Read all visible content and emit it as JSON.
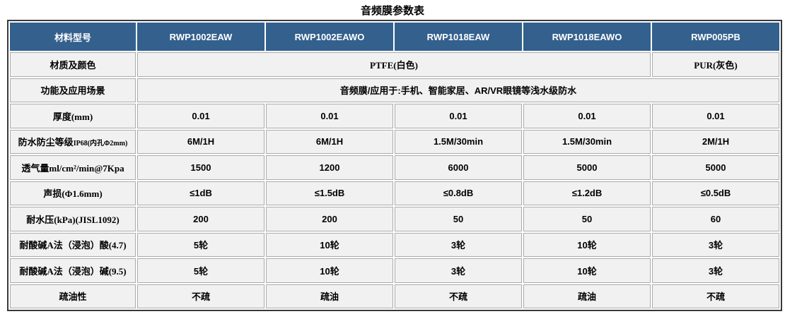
{
  "title": "音频膜参数表",
  "colors": {
    "header_bg": "#33608d",
    "header_text": "#ffffff",
    "cell_bg": "#f1f1f1",
    "cell_border": "#ababab",
    "outer_border": "#3a3a3a",
    "text": "#000000"
  },
  "table": {
    "header": {
      "label": "材料型号",
      "models": [
        "RWP1002EAW",
        "RWP1002EAWO",
        "RWP1018EAW",
        "RWP1018EAWO",
        "RWP005PB"
      ]
    },
    "rows": [
      {
        "label": "材质及颜色",
        "serif": true,
        "cells": [
          {
            "text": "PTFE(白色)",
            "span": 4
          },
          {
            "text": "PUR(灰色)",
            "span": 1
          }
        ]
      },
      {
        "label": "功能及应用场景",
        "serif": false,
        "cells": [
          {
            "text": "音频膜/应用于:手机、智能家居、AR/VR眼镜等浅水级防水",
            "span": 5
          }
        ]
      },
      {
        "label": "厚度(mm)",
        "cells": [
          {
            "text": "0.01"
          },
          {
            "text": "0.01"
          },
          {
            "text": "0.01"
          },
          {
            "text": "0.01"
          },
          {
            "text": "0.01"
          }
        ]
      },
      {
        "label": "防水防尘等级",
        "label_suffix": "IP68(内孔Φ2mm)",
        "cells": [
          {
            "text": "6M/1H"
          },
          {
            "text": "6M/1H"
          },
          {
            "text": "1.5M/30min"
          },
          {
            "text": "1.5M/30min"
          },
          {
            "text": "2M/1H"
          }
        ]
      },
      {
        "label": "透气量ml/cm²/min@7Kpa",
        "cells": [
          {
            "text": "1500"
          },
          {
            "text": "1200"
          },
          {
            "text": "6000"
          },
          {
            "text": "5000"
          },
          {
            "text": "5000"
          }
        ]
      },
      {
        "label": "声损(Φ1.6mm)",
        "cells": [
          {
            "text": "≤1dB"
          },
          {
            "text": "≤1.5dB"
          },
          {
            "text": "≤0.8dB"
          },
          {
            "text": "≤1.2dB"
          },
          {
            "text": "≤0.5dB"
          }
        ]
      },
      {
        "label": "耐水压(kPa)(JISL1092)",
        "cells": [
          {
            "text": "200"
          },
          {
            "text": "200"
          },
          {
            "text": "50"
          },
          {
            "text": "50"
          },
          {
            "text": "60"
          }
        ]
      },
      {
        "label": "耐酸碱A法（浸泡）酸(4.7)",
        "cells": [
          {
            "text": "5轮"
          },
          {
            "text": "10轮"
          },
          {
            "text": "3轮"
          },
          {
            "text": "10轮"
          },
          {
            "text": "3轮"
          }
        ]
      },
      {
        "label": "耐酸碱A法（浸泡）碱(9.5)",
        "cells": [
          {
            "text": "5轮"
          },
          {
            "text": "10轮"
          },
          {
            "text": "3轮"
          },
          {
            "text": "10轮"
          },
          {
            "text": "3轮"
          }
        ]
      },
      {
        "label": "疏油性",
        "cells": [
          {
            "text": "不疏"
          },
          {
            "text": "疏油"
          },
          {
            "text": "不疏"
          },
          {
            "text": "疏油"
          },
          {
            "text": "不疏"
          }
        ]
      }
    ]
  }
}
